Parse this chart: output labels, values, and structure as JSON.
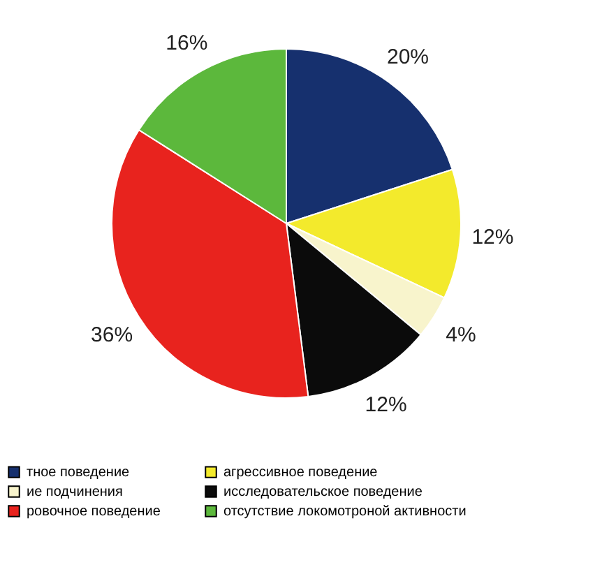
{
  "chart_data": {
    "type": "pie",
    "categories": [
      "тное поведение",
      "агрессивное поведение",
      "ие подчинения",
      "исследовательское поведение",
      "ровочное поведение",
      "отсутствие локомотроной активности"
    ],
    "values": [
      20,
      12,
      4,
      12,
      36,
      16
    ],
    "value_labels": [
      "20%",
      "12%",
      "4%",
      "12%",
      "36%",
      "16%"
    ],
    "colors": [
      "#16306e",
      "#f3ea2c",
      "#f8f4cc",
      "#0b0b0b",
      "#e8231e",
      "#5cb83c"
    ],
    "legend": "bottom"
  }
}
